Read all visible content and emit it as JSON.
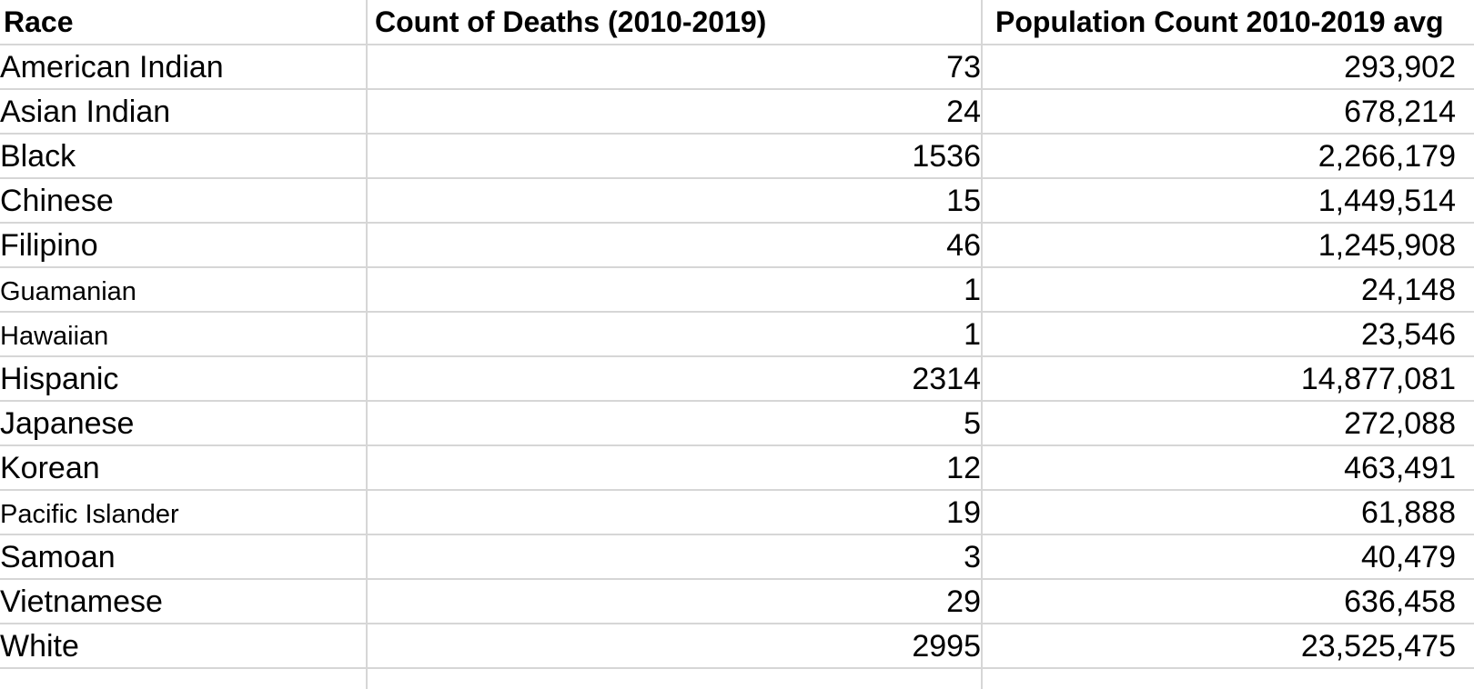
{
  "table": {
    "headers": {
      "race": "Race",
      "deaths": "Count of Deaths (2010-2019)",
      "population": "Population Count 2010-2019 avg"
    },
    "rows": [
      {
        "race": "American Indian",
        "deaths": "73",
        "population": "293,902",
        "small": false
      },
      {
        "race": "Asian Indian",
        "deaths": "24",
        "population": "678,214",
        "small": false
      },
      {
        "race": "Black",
        "deaths": "1536",
        "population": "2,266,179",
        "small": false
      },
      {
        "race": "Chinese",
        "deaths": "15",
        "population": "1,449,514",
        "small": false
      },
      {
        "race": "Filipino",
        "deaths": "46",
        "population": "1,245,908",
        "small": false
      },
      {
        "race": "Guamanian",
        "deaths": "1",
        "population": "24,148",
        "small": true
      },
      {
        "race": "Hawaiian",
        "deaths": "1",
        "population": "23,546",
        "small": true
      },
      {
        "race": "Hispanic",
        "deaths": "2314",
        "population": "14,877,081",
        "small": false
      },
      {
        "race": "Japanese",
        "deaths": "5",
        "population": "272,088",
        "small": false
      },
      {
        "race": "Korean",
        "deaths": "12",
        "population": "463,491",
        "small": false
      },
      {
        "race": "Pacific Islander",
        "deaths": "19",
        "population": "61,888",
        "small": true
      },
      {
        "race": "Samoan",
        "deaths": "3",
        "population": "40,479",
        "small": false
      },
      {
        "race": "Vietnamese",
        "deaths": "29",
        "population": "636,458",
        "small": false
      },
      {
        "race": "White",
        "deaths": "2995",
        "population": "23,525,475",
        "small": false
      }
    ]
  }
}
